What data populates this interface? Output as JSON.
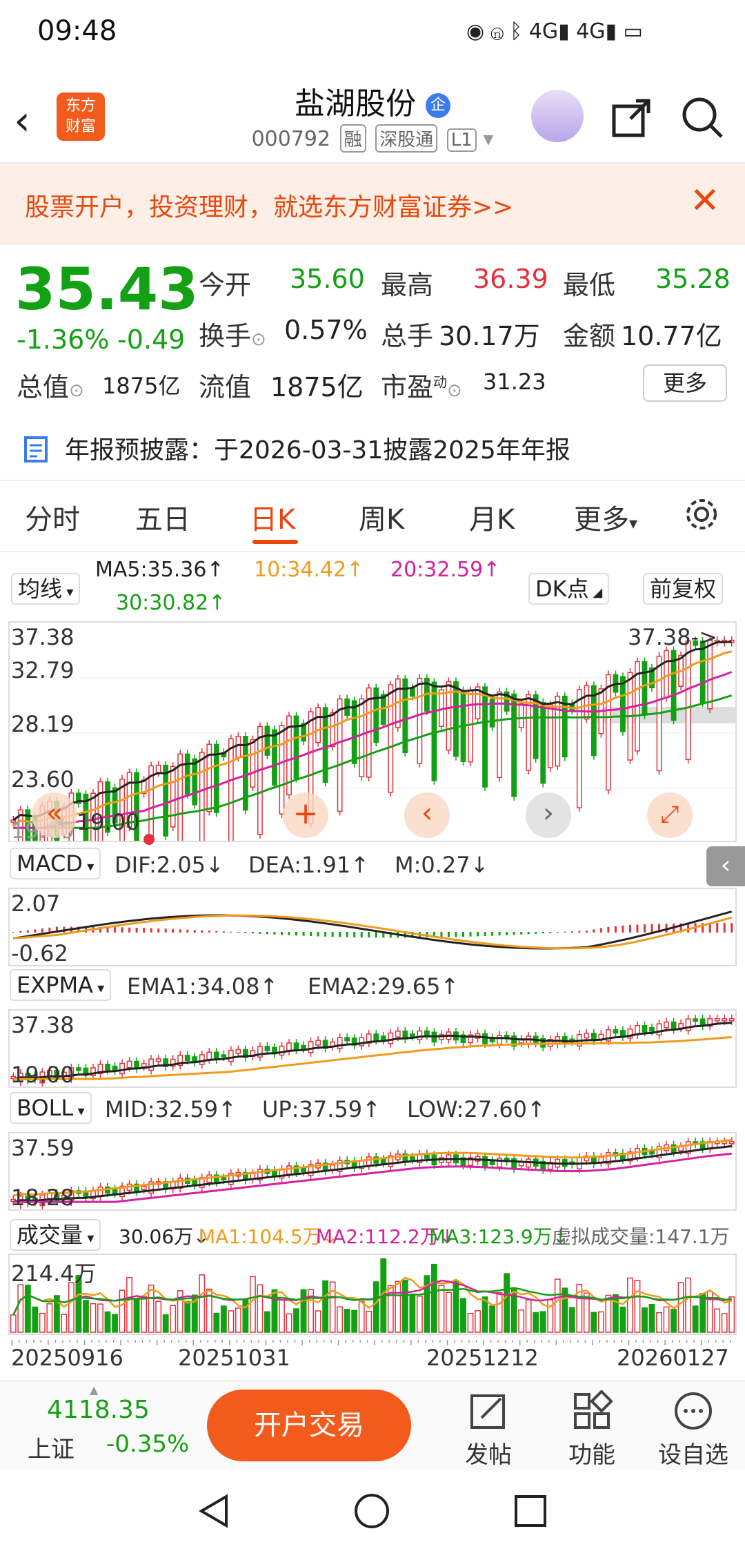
{
  "status": {
    "time": "09:48"
  },
  "header": {
    "title": "盐湖股份",
    "code": "000792",
    "tags": [
      "融",
      "深股通",
      "L1"
    ]
  },
  "banner": {
    "text": "股票开户，投资理财，就选东方财富证券>>"
  },
  "quote": {
    "price": "35.43",
    "change_pct": "-1.36%",
    "change": "-0.49",
    "open_label": "今开",
    "open": "35.60",
    "high_label": "最高",
    "high": "36.39",
    "low_label": "最低",
    "low": "35.28",
    "turnover_label": "换手",
    "turnover": "0.57%",
    "volume_label": "总手",
    "volume": "30.17万",
    "amount_label": "金额",
    "amount": "10.77亿",
    "mktcap_label": "总值",
    "mktcap": "1875亿",
    "float_label": "流值",
    "float": "1875亿",
    "pe_label": "市盈",
    "pe_sup": "动",
    "pe": "31.23",
    "more": "更多"
  },
  "announce": {
    "text": "年报预披露：于2026-03-31披露2025年年报"
  },
  "tabs": [
    "分时",
    "五日",
    "日K",
    "周K",
    "月K",
    "更多"
  ],
  "ma": {
    "selector": "均线",
    "ma5": "MA5:35.36↑",
    "ma10": "10:34.42↑",
    "ma20": "20:32.59↑",
    "ma30": "30:30.82↑",
    "dk": "DK点",
    "adjust": "前复权"
  },
  "kline": {
    "y1": "37.38",
    "y2": "32.79",
    "y3": "28.19",
    "y4": "23.60",
    "y5": "19.00",
    "max_note": "37.38->",
    "min_note": "←19.00"
  },
  "macd": {
    "selector": "MACD",
    "dif": "DIF:2.05↓",
    "dea": "DEA:1.91↑",
    "m": "M:0.27↓",
    "y_top": "2.07",
    "y_bot": "-0.62"
  },
  "expma": {
    "selector": "EXPMA",
    "ema1": "EMA1:34.08↑",
    "ema2": "EMA2:29.65↑",
    "y_top": "37.38",
    "y_bot": "19.00"
  },
  "boll": {
    "selector": "BOLL",
    "mid": "MID:32.59↑",
    "up": "UP:37.59↑",
    "low": "LOW:27.60↑",
    "y_top": "37.59",
    "y_bot": "18.28"
  },
  "vol": {
    "selector": "成交量",
    "v": "30.06万↓",
    "ma1": "MA1:104.5万↓",
    "ma2": "MA2:112.2万↓",
    "ma3": "MA3:123.9万↓",
    "virtual": "虚拟成交量:147.1万",
    "y_top": "214.4万"
  },
  "dates": [
    "20250916",
    "20251031",
    "20251212",
    "20260127"
  ],
  "bottom": {
    "index_value": "4118.35",
    "index_name": "上证",
    "index_change": "-0.35%",
    "trade": "开户交易",
    "post": "发帖",
    "func": "功能",
    "watch": "设自选"
  },
  "colors": {
    "up": "#e3323c",
    "down": "#14a014",
    "accent": "#f25b1c",
    "ma10": "#f19a1b",
    "ma20": "#d4219f"
  }
}
